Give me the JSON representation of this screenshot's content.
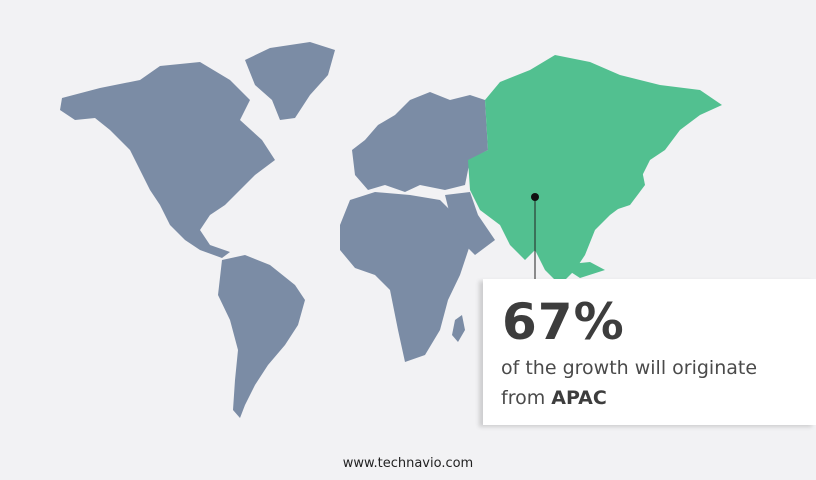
{
  "colors": {
    "background": "#f2f2f4",
    "other_regions": "#7b8ca5",
    "highlight_region": "#52c090",
    "text": "#3d3d3d"
  },
  "map": {
    "highlighted_region": "APAC"
  },
  "callout": {
    "value": "67%",
    "text": "of the growth will originate",
    "text2_prefix": "from",
    "region": "APAC"
  },
  "footer": {
    "url": "www.technavio.com"
  }
}
